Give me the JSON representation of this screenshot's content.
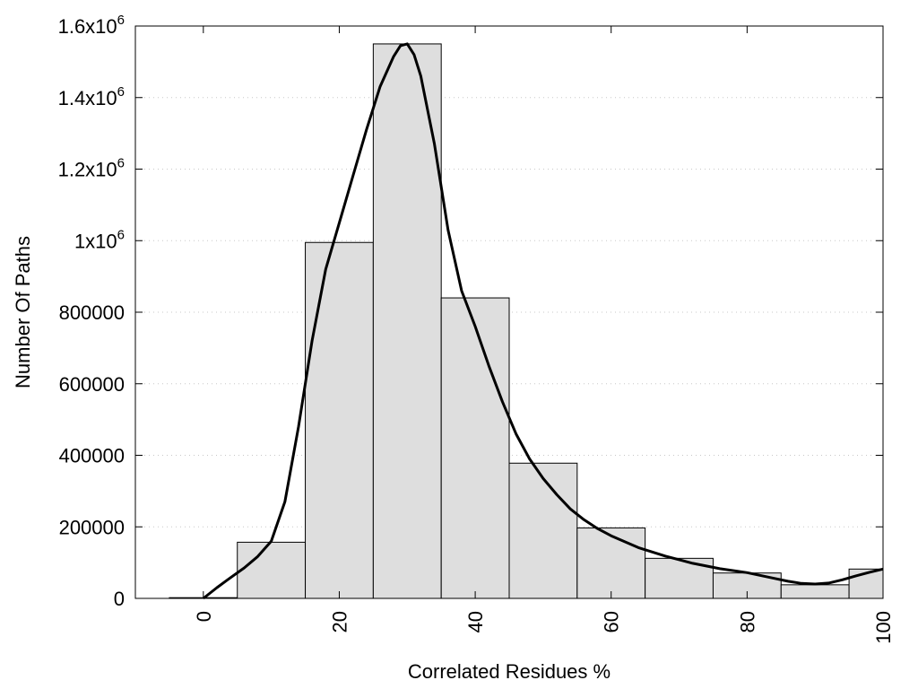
{
  "chart_data": {
    "type": "bar",
    "xlabel": "Correlated Residues %",
    "ylabel": "Number Of Paths",
    "xlim": [
      -10,
      100
    ],
    "ylim": [
      0,
      1600000
    ],
    "x_ticks": [
      {
        "value": 0,
        "label": "0"
      },
      {
        "value": 20,
        "label": "20"
      },
      {
        "value": 40,
        "label": "40"
      },
      {
        "value": 60,
        "label": "60"
      },
      {
        "value": 80,
        "label": "80"
      },
      {
        "value": 100,
        "label": "100"
      }
    ],
    "y_ticks": [
      {
        "value": 0,
        "base": "0",
        "exp": ""
      },
      {
        "value": 200000,
        "base": "200000",
        "exp": ""
      },
      {
        "value": 400000,
        "base": "400000",
        "exp": ""
      },
      {
        "value": 600000,
        "base": "600000",
        "exp": ""
      },
      {
        "value": 800000,
        "base": "800000",
        "exp": ""
      },
      {
        "value": 1000000,
        "base": "1x10",
        "exp": "6"
      },
      {
        "value": 1200000,
        "base": "1.2x10",
        "exp": "6"
      },
      {
        "value": 1400000,
        "base": "1.4x10",
        "exp": "6"
      },
      {
        "value": 1600000,
        "base": "1.6x10",
        "exp": "6"
      }
    ],
    "grid": "horizontal-dotted",
    "bars": [
      {
        "start": -5,
        "end": 5,
        "value": 2000
      },
      {
        "start": 5,
        "end": 15,
        "value": 157000
      },
      {
        "start": 15,
        "end": 25,
        "value": 995000
      },
      {
        "start": 25,
        "end": 35,
        "value": 1550000
      },
      {
        "start": 35,
        "end": 45,
        "value": 840000
      },
      {
        "start": 45,
        "end": 55,
        "value": 378000
      },
      {
        "start": 55,
        "end": 65,
        "value": 197000
      },
      {
        "start": 65,
        "end": 75,
        "value": 112000
      },
      {
        "start": 75,
        "end": 85,
        "value": 71000
      },
      {
        "start": 85,
        "end": 95,
        "value": 38000
      },
      {
        "start": 95,
        "end": 100,
        "value": 82000
      }
    ],
    "curve": {
      "x": [
        0,
        2,
        4,
        6,
        8,
        10,
        12,
        14,
        16,
        18,
        20,
        22,
        24,
        26,
        28,
        29,
        30,
        31,
        32,
        34,
        36,
        38,
        40,
        42,
        44,
        46,
        48,
        50,
        52,
        54,
        56,
        58,
        60,
        64,
        68,
        72,
        76,
        80,
        84,
        86,
        88,
        90,
        92,
        94,
        96,
        98,
        100
      ],
      "y": [
        0,
        30000,
        58000,
        85000,
        117000,
        160000,
        270000,
        480000,
        720000,
        920000,
        1050000,
        1180000,
        1310000,
        1430000,
        1515000,
        1545000,
        1550000,
        1520000,
        1460000,
        1270000,
        1030000,
        860000,
        760000,
        650000,
        550000,
        460000,
        390000,
        335000,
        290000,
        250000,
        220000,
        195000,
        175000,
        142000,
        118000,
        98000,
        83000,
        72000,
        56000,
        48000,
        42000,
        40000,
        43000,
        52000,
        63000,
        73000,
        82000
      ]
    }
  }
}
